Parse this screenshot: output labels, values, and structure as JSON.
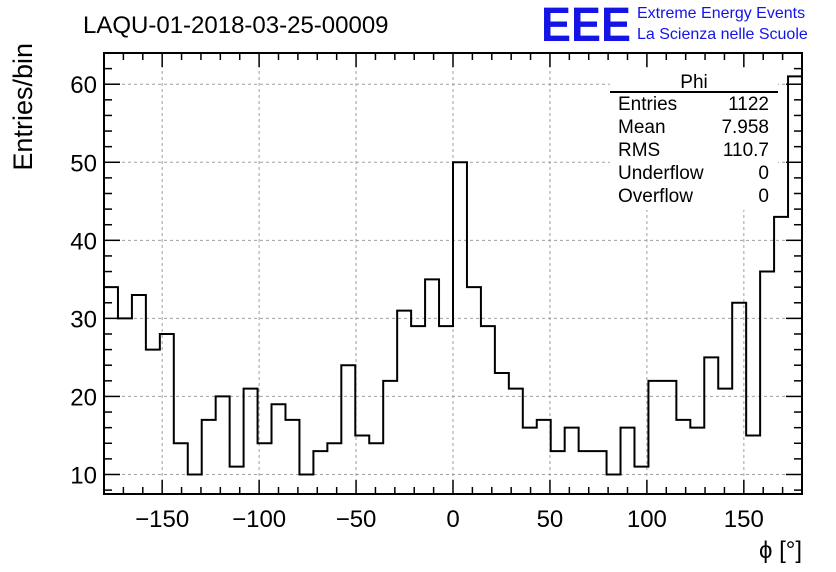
{
  "header": {
    "run_title": "LAQU-01-2018-03-25-00009",
    "logo_text": "EEE",
    "logo_line1": "Extreme Energy Events",
    "logo_line2": "La Scienza nelle Scuole",
    "logo_color": "#1414e6"
  },
  "chart_data": {
    "type": "histogram",
    "title": "LAQU-01-2018-03-25-00009",
    "xlabel": "ϕ [°]",
    "ylabel": "Entries/bin",
    "xlim": [
      -180,
      180
    ],
    "ylim": [
      7.5,
      64
    ],
    "bin_width": 7.2,
    "bin_low_edges": [
      -180,
      -172.8,
      -165.6,
      -158.4,
      -151.2,
      -144,
      -136.8,
      -129.6,
      -122.4,
      -115.2,
      -108,
      -100.8,
      -93.6,
      -86.4,
      -79.2,
      -72,
      -64.8,
      -57.6,
      -50.4,
      -43.2,
      -36,
      -28.8,
      -21.6,
      -14.4,
      -7.2,
      0,
      7.2,
      14.4,
      21.6,
      28.8,
      36,
      43.2,
      50.4,
      57.6,
      64.8,
      72,
      79.2,
      86.4,
      93.6,
      100.8,
      108,
      115.2,
      122.4,
      129.6,
      136.8,
      144,
      151.2,
      158.4,
      165.6,
      172.8
    ],
    "values": [
      34,
      30,
      33,
      26,
      28,
      14,
      10,
      17,
      20,
      11,
      21,
      14,
      19,
      17,
      10,
      13,
      14,
      24,
      15,
      14,
      22,
      31,
      29,
      35,
      29,
      50,
      34,
      29,
      23,
      21,
      16,
      17,
      13,
      16,
      13,
      13,
      10,
      16,
      11,
      22,
      22,
      17,
      16,
      25,
      21,
      32,
      15,
      36,
      43,
      61
    ],
    "xticks": [
      -150,
      -100,
      -50,
      0,
      50,
      100,
      150
    ],
    "xtick_labels": [
      "−150",
      "−100",
      "−50",
      "0",
      "50",
      "100",
      "150"
    ],
    "yticks": [
      10,
      20,
      30,
      40,
      50,
      60
    ],
    "ytick_labels": [
      "10",
      "20",
      "30",
      "40",
      "50",
      "60"
    ],
    "grid": true,
    "legend_position": "top-right"
  },
  "stats_box": {
    "title": "Phi",
    "rows": [
      {
        "label": "Entries",
        "value": "1122"
      },
      {
        "label": "Mean",
        "value": "7.958"
      },
      {
        "label": "RMS",
        "value": "110.7"
      },
      {
        "label": "Underflow",
        "value": "0"
      },
      {
        "label": "Overflow",
        "value": "0"
      }
    ]
  }
}
